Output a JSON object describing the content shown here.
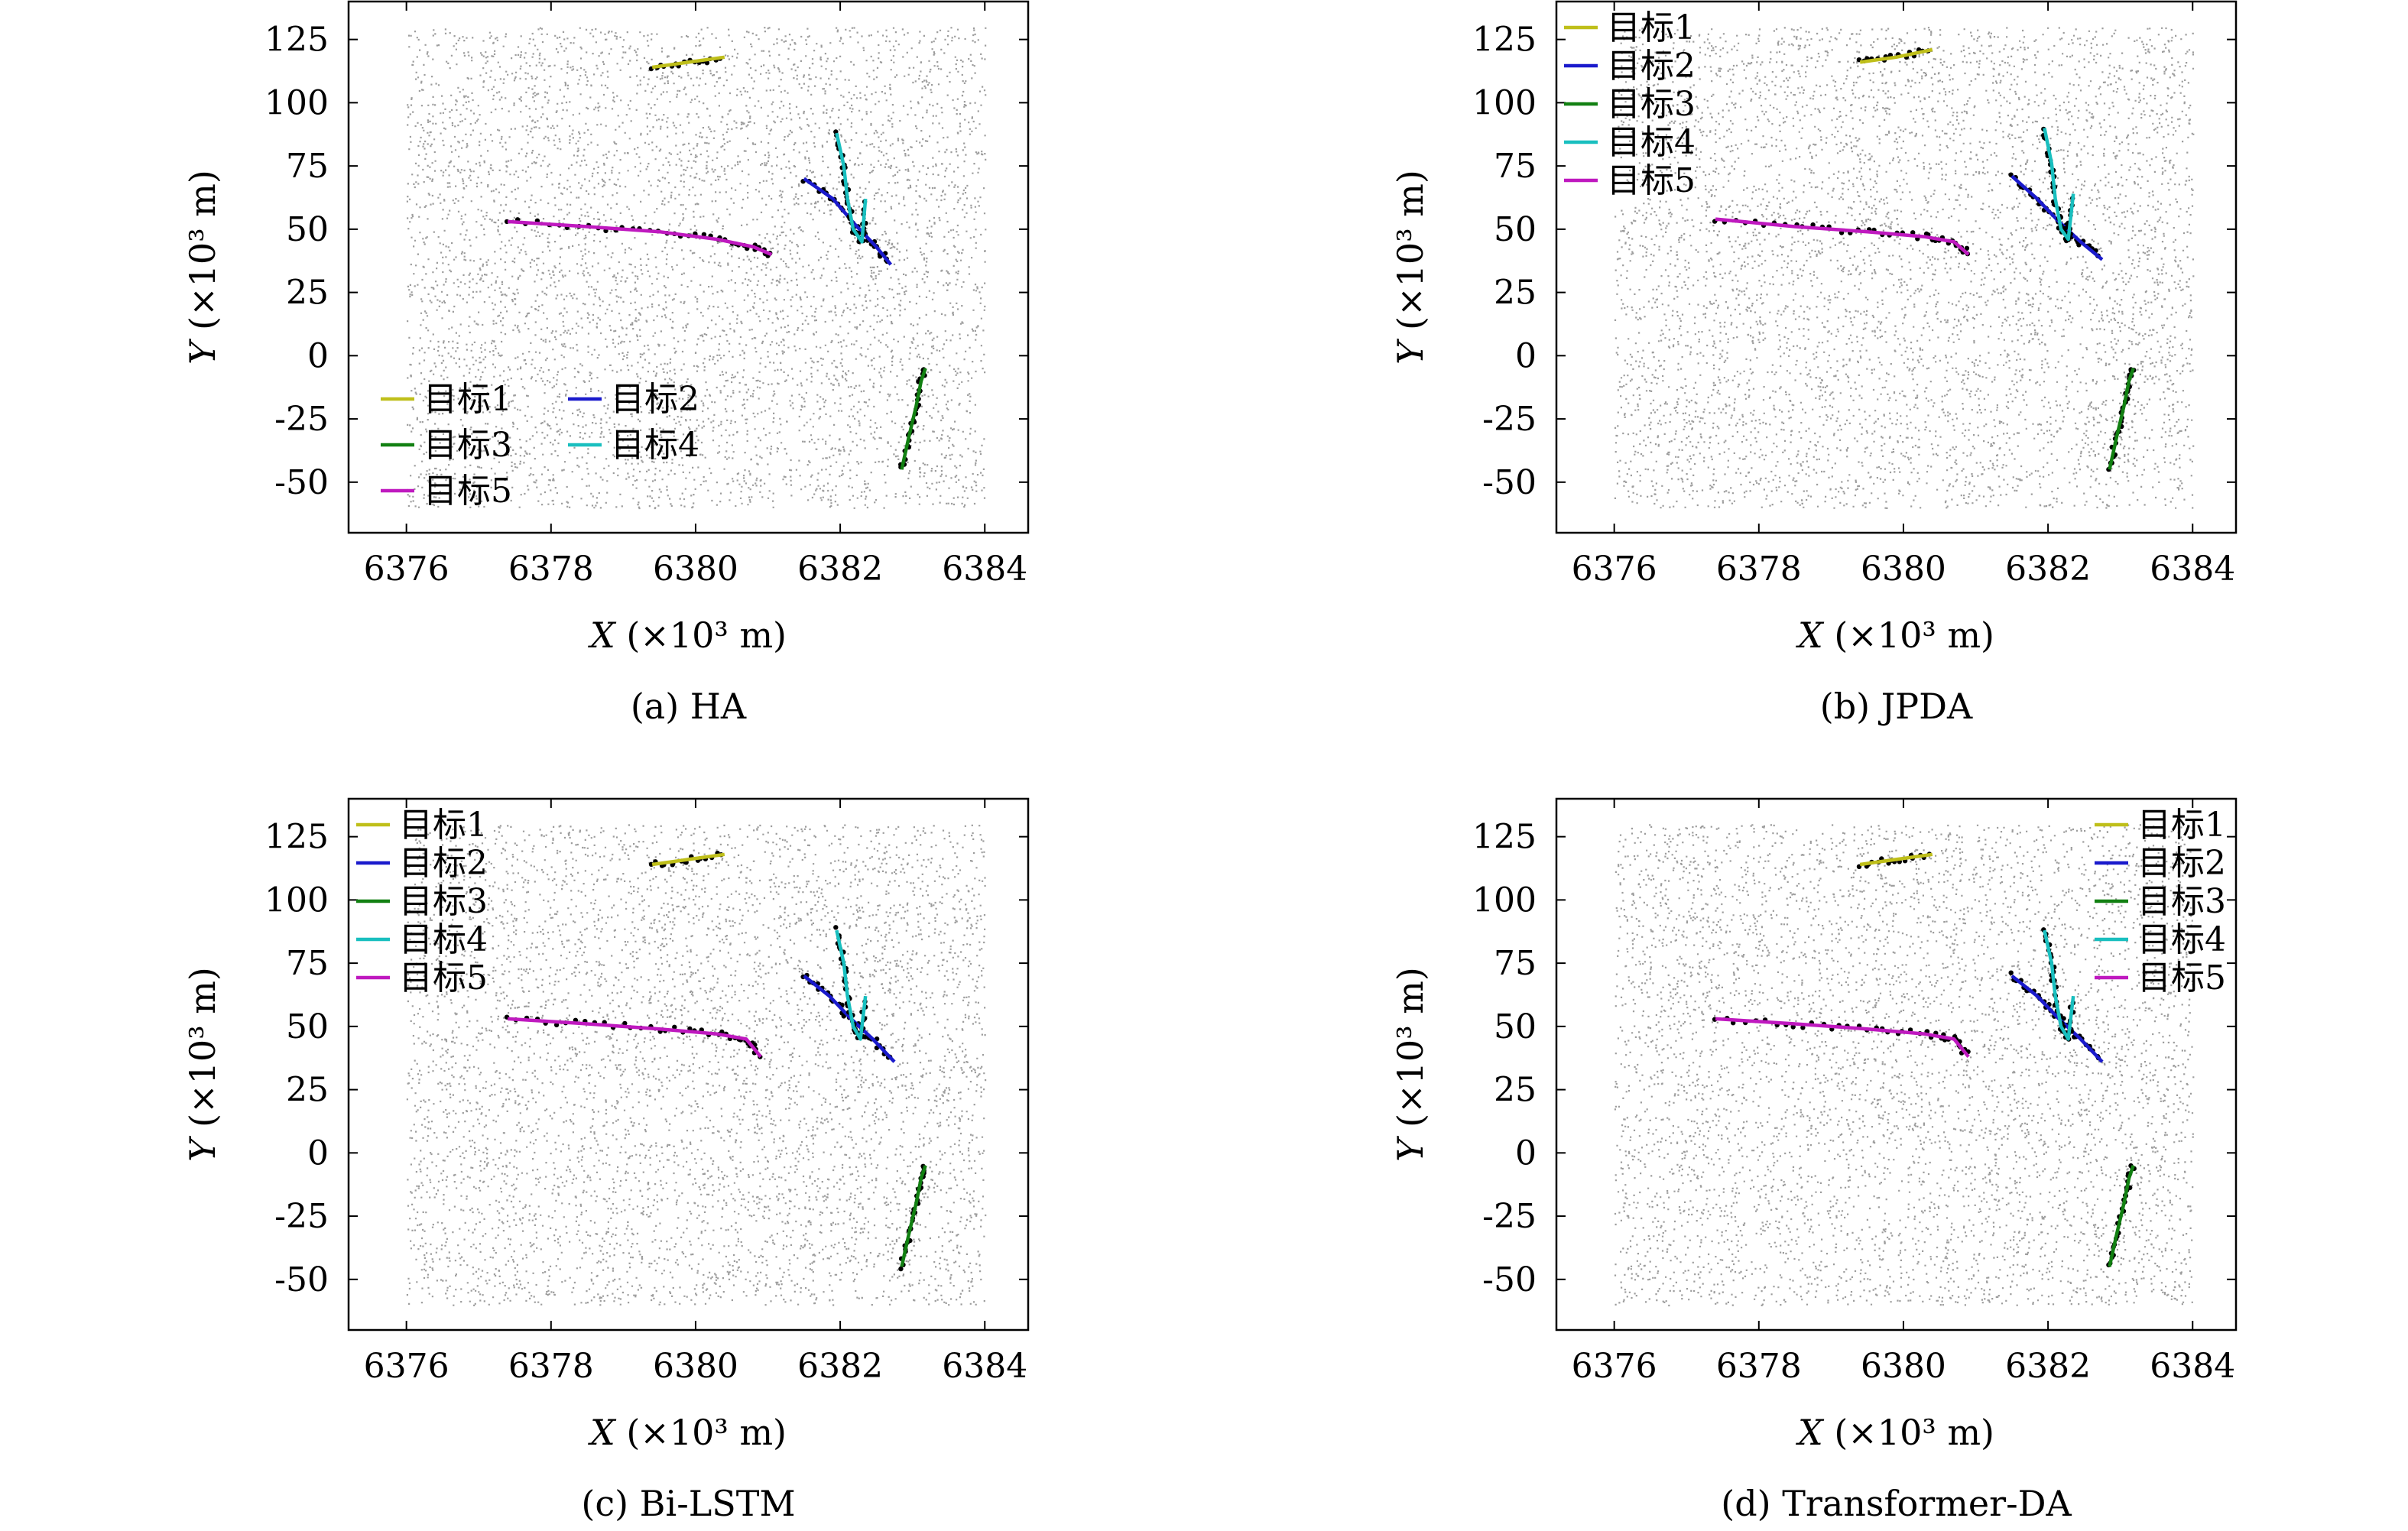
{
  "axis_text": {
    "xlabel_var": "X",
    "xlabel_unit": "(×10³ m)",
    "ylabel_var": "Y",
    "ylabel_unit": "(×10³ m)"
  },
  "colors": {
    "target1": "#bfbf1a",
    "target2": "#1a1acc",
    "target3": "#128012",
    "target4": "#19bfbf",
    "target5": "#bf19bf",
    "clutter": "#8c8c8c",
    "measurement": "#000000"
  },
  "chart_data": [
    {
      "type": "line",
      "caption": "(a) HA",
      "xlim": [
        6375.2,
        6384.6
      ],
      "ylim": [
        -70,
        140
      ],
      "xticks": [
        6376,
        6378,
        6380,
        6382,
        6384
      ],
      "yticks": [
        -50,
        -25,
        0,
        25,
        50,
        75,
        100,
        125
      ],
      "grid": false,
      "legend_position": "lower-left",
      "legend_columns": 2,
      "series": [
        {
          "name": "目标1",
          "color_key": "target1",
          "x": [
            6379.4,
            6379.9,
            6380.4
          ],
          "y": [
            114,
            116,
            118
          ]
        },
        {
          "name": "目标2",
          "color_key": "target2",
          "x": [
            6381.5,
            6381.9,
            6382.2,
            6382.5,
            6382.7
          ],
          "y": [
            70,
            62,
            52,
            43,
            36
          ]
        },
        {
          "name": "目标3",
          "color_key": "target3",
          "x": [
            6382.85,
            6382.95,
            6383.05,
            6383.12,
            6383.18
          ],
          "y": [
            -45,
            -32,
            -20,
            -10,
            -5
          ]
        },
        {
          "name": "目标4",
          "color_key": "target4",
          "x": [
            6381.95,
            6382.05,
            6382.1,
            6382.18,
            6382.3,
            6382.35
          ],
          "y": [
            88,
            75,
            62,
            50,
            45,
            62
          ]
        },
        {
          "name": "目标5",
          "color_key": "target5",
          "x": [
            6377.4,
            6378.5,
            6379.5,
            6380.3,
            6380.8,
            6381.05
          ],
          "y": [
            53,
            51,
            49,
            46,
            43,
            40
          ]
        }
      ]
    },
    {
      "type": "line",
      "caption": "(b) JPDA",
      "xlim": [
        6375.2,
        6384.6
      ],
      "ylim": [
        -70,
        140
      ],
      "xticks": [
        6376,
        6378,
        6380,
        6382,
        6384
      ],
      "yticks": [
        -50,
        -25,
        0,
        25,
        50,
        75,
        100,
        125
      ],
      "grid": false,
      "legend_position": "upper-left",
      "legend_columns": 1,
      "series": [
        {
          "name": "目标1",
          "color_key": "target1",
          "x": [
            6379.4,
            6379.9,
            6380.4
          ],
          "y": [
            116,
            118,
            121
          ]
        },
        {
          "name": "目标2",
          "color_key": "target2",
          "x": [
            6381.5,
            6381.85,
            6382.15,
            6382.45,
            6382.75
          ],
          "y": [
            71,
            62,
            53,
            45,
            38
          ]
        },
        {
          "name": "目标3",
          "color_key": "target3",
          "x": [
            6382.85,
            6382.95,
            6383.05,
            6383.12,
            6383.18
          ],
          "y": [
            -45,
            -32,
            -20,
            -10,
            -5
          ]
        },
        {
          "name": "目标4",
          "color_key": "target4",
          "x": [
            6381.95,
            6382.05,
            6382.1,
            6382.18,
            6382.28,
            6382.35
          ],
          "y": [
            90,
            76,
            62,
            50,
            46,
            64
          ]
        },
        {
          "name": "目标5",
          "color_key": "target5",
          "x": [
            6377.4,
            6378.5,
            6379.5,
            6380.3,
            6380.7,
            6380.9
          ],
          "y": [
            54,
            51,
            49,
            47,
            45,
            40
          ]
        }
      ]
    },
    {
      "type": "line",
      "caption": "(c) Bi-LSTM",
      "xlim": [
        6375.2,
        6384.6
      ],
      "ylim": [
        -70,
        140
      ],
      "xticks": [
        6376,
        6378,
        6380,
        6382,
        6384
      ],
      "yticks": [
        -50,
        -25,
        0,
        25,
        50,
        75,
        100,
        125
      ],
      "grid": false,
      "legend_position": "upper-left",
      "legend_columns": 1,
      "series": [
        {
          "name": "目标1",
          "color_key": "target1",
          "x": [
            6379.4,
            6379.9,
            6380.4
          ],
          "y": [
            114,
            116,
            118
          ]
        },
        {
          "name": "目标2",
          "color_key": "target2",
          "x": [
            6381.5,
            6381.85,
            6382.15,
            6382.45,
            6382.75
          ],
          "y": [
            70,
            62,
            53,
            45,
            36
          ]
        },
        {
          "name": "目标3",
          "color_key": "target3",
          "x": [
            6382.85,
            6382.95,
            6383.05,
            6383.12,
            6383.18
          ],
          "y": [
            -45,
            -32,
            -20,
            -10,
            -5
          ]
        },
        {
          "name": "目标4",
          "color_key": "target4",
          "x": [
            6381.95,
            6382.05,
            6382.1,
            6382.18,
            6382.28,
            6382.35
          ],
          "y": [
            88,
            75,
            62,
            50,
            45,
            62
          ]
        },
        {
          "name": "目标5",
          "color_key": "target5",
          "x": [
            6377.4,
            6378.5,
            6379.5,
            6380.3,
            6380.7,
            6380.9
          ],
          "y": [
            53,
            51,
            49,
            47,
            45,
            38
          ]
        }
      ]
    },
    {
      "type": "line",
      "caption": "(d) Transformer-DA",
      "xlim": [
        6375.2,
        6384.6
      ],
      "ylim": [
        -70,
        140
      ],
      "xticks": [
        6376,
        6378,
        6380,
        6382,
        6384
      ],
      "yticks": [
        -50,
        -25,
        0,
        25,
        50,
        75,
        100,
        125
      ],
      "grid": false,
      "legend_position": "upper-right",
      "legend_columns": 1,
      "series": [
        {
          "name": "目标1",
          "color_key": "target1",
          "x": [
            6379.4,
            6379.9,
            6380.4
          ],
          "y": [
            114,
            116,
            118
          ]
        },
        {
          "name": "目标2",
          "color_key": "target2",
          "x": [
            6381.5,
            6381.85,
            6382.15,
            6382.45,
            6382.75
          ],
          "y": [
            70,
            62,
            53,
            45,
            36
          ]
        },
        {
          "name": "目标3",
          "color_key": "target3",
          "x": [
            6382.85,
            6382.95,
            6383.05,
            6383.12,
            6383.18
          ],
          "y": [
            -45,
            -32,
            -20,
            -10,
            -5
          ]
        },
        {
          "name": "目标4",
          "color_key": "target4",
          "x": [
            6381.95,
            6382.05,
            6382.1,
            6382.18,
            6382.28,
            6382.35
          ],
          "y": [
            88,
            75,
            62,
            50,
            45,
            62
          ]
        },
        {
          "name": "目标5",
          "color_key": "target5",
          "x": [
            6377.4,
            6378.5,
            6379.5,
            6380.3,
            6380.7,
            6380.9
          ],
          "y": [
            53,
            51,
            49,
            47,
            45,
            38
          ]
        }
      ]
    }
  ]
}
